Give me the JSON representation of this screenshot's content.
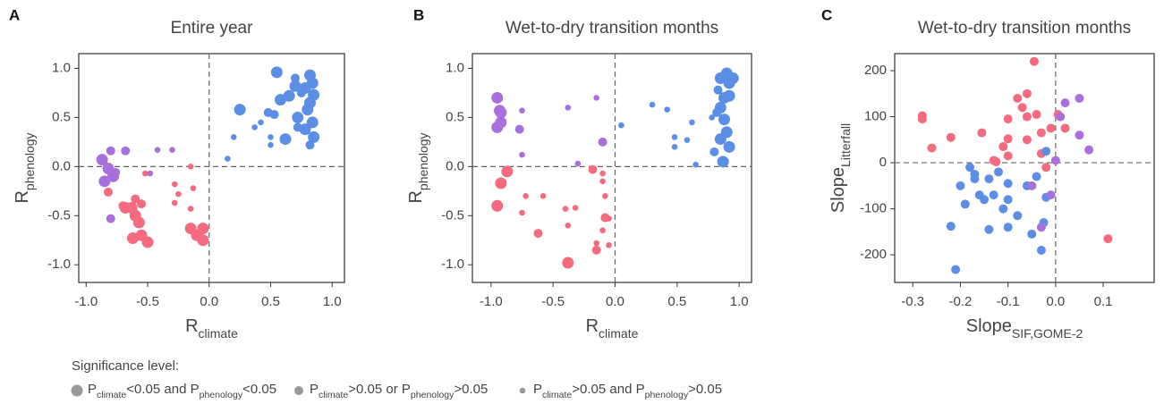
{
  "chart_data": [
    {
      "type": "scatter",
      "panel": "A",
      "title": "Entire year",
      "xlabel": [
        "R",
        "climate"
      ],
      "ylabel": [
        "R",
        "phenology"
      ],
      "xlim": [
        -1.06,
        1.1
      ],
      "ylim": [
        -1.18,
        1.15
      ],
      "xticks": [
        {
          "value": -1,
          "label": "-1.0"
        },
        {
          "value": -0.5,
          "label": "-0.5"
        },
        {
          "value": 0,
          "label": "0.0"
        },
        {
          "value": 0.5,
          "label": "0.5"
        },
        {
          "value": 1,
          "label": "1.0"
        }
      ],
      "yticks": [
        {
          "value": -1,
          "label": "-1.0"
        },
        {
          "value": -0.5,
          "label": "-0.5"
        },
        {
          "value": 0,
          "label": "0.0"
        },
        {
          "value": 0.5,
          "label": "0.5"
        },
        {
          "value": 1,
          "label": "1.0"
        }
      ],
      "reference_lines": {
        "x": 0,
        "y": 0
      },
      "series": [
        {
          "color": "#5b8fe6",
          "marker": "large",
          "x": [
            0.55,
            0.82,
            0.84,
            0.7,
            0.85,
            0.78,
            0.65,
            0.58,
            0.82,
            0.8,
            0.72,
            0.84,
            0.62,
            0.85,
            0.25,
            0.78
          ],
          "values": [
            0.96,
            0.93,
            0.85,
            0.82,
            0.73,
            0.8,
            0.72,
            0.68,
            0.65,
            0.58,
            0.5,
            0.45,
            0.28,
            0.3,
            0.58,
            0.38
          ]
        },
        {
          "color": "#5b8fe6",
          "marker": "medium",
          "x": [
            0.7,
            0.75,
            0.48,
            0.82,
            0.72,
            0.53
          ],
          "values": [
            0.9,
            0.75,
            0.55,
            0.22,
            0.4,
            0.53
          ]
        },
        {
          "color": "#5b8fe6",
          "marker": "small",
          "x": [
            0.42,
            0.2,
            0.15,
            0.37,
            0.5,
            0.5
          ],
          "values": [
            0.45,
            0.3,
            0.08,
            0.4,
            0.3,
            0.22
          ]
        },
        {
          "color": "#a970dd",
          "marker": "large",
          "x": [
            -0.87,
            -0.85,
            -0.82,
            -0.78
          ],
          "values": [
            0.07,
            -0.15,
            -0.02,
            -0.1
          ]
        },
        {
          "color": "#a970dd",
          "marker": "medium",
          "x": [
            -0.8,
            -0.68,
            -0.8,
            -0.76
          ],
          "values": [
            0.16,
            0.16,
            -0.53,
            -0.06
          ]
        },
        {
          "color": "#a970dd",
          "marker": "small",
          "x": [
            -0.42,
            -0.3,
            -0.48
          ],
          "values": [
            0.17,
            0.17,
            -0.07
          ]
        },
        {
          "color": "#f46a7f",
          "marker": "large",
          "x": [
            -0.62,
            -0.55,
            -0.5,
            -0.63,
            -0.68,
            -0.6,
            -0.57,
            -0.1,
            -0.05,
            -0.15,
            -0.05
          ],
          "values": [
            -0.73,
            -0.7,
            -0.77,
            -0.42,
            -0.42,
            -0.5,
            -0.57,
            -0.7,
            -0.63,
            -0.63,
            -0.75
          ]
        },
        {
          "color": "#f46a7f",
          "marker": "medium",
          "x": [
            -0.82,
            -0.6,
            -0.55,
            -0.7
          ],
          "values": [
            -0.26,
            -0.33,
            -0.38,
            -0.4
          ]
        },
        {
          "color": "#f46a7f",
          "marker": "small",
          "x": [
            -0.52,
            -0.28,
            -0.25,
            -0.15,
            -0.13,
            -0.15,
            -0.28
          ],
          "values": [
            -0.07,
            -0.18,
            -0.28,
            0.0,
            -0.22,
            -0.43,
            -0.37
          ]
        }
      ]
    },
    {
      "type": "scatter",
      "panel": "B",
      "title": "Wet-to-dry transition months",
      "xlabel": [
        "R",
        "climate"
      ],
      "ylabel": [
        "R",
        "phenology"
      ],
      "xlim": [
        -1.15,
        1.1
      ],
      "ylim": [
        -1.18,
        1.15
      ],
      "xticks": [
        {
          "value": -1,
          "label": "-1.0"
        },
        {
          "value": -0.5,
          "label": "-0.5"
        },
        {
          "value": 0,
          "label": "0.0"
        },
        {
          "value": 0.5,
          "label": "0.5"
        },
        {
          "value": 1,
          "label": "1.0"
        }
      ],
      "yticks": [
        {
          "value": -1,
          "label": "-1.0"
        },
        {
          "value": -0.5,
          "label": "-0.5"
        },
        {
          "value": 0,
          "label": "0.0"
        },
        {
          "value": 0.5,
          "label": "0.5"
        },
        {
          "value": 1,
          "label": "1.0"
        }
      ],
      "reference_lines": {
        "x": 0,
        "y": 0
      },
      "series": [
        {
          "color": "#5b8fe6",
          "marker": "large",
          "x": [
            0.9,
            0.95,
            0.85,
            0.88,
            0.92,
            0.85,
            0.88,
            0.9,
            0.85,
            0.92,
            0.87,
            0.92
          ],
          "values": [
            0.95,
            0.9,
            0.9,
            0.7,
            0.72,
            0.6,
            0.48,
            0.35,
            0.28,
            0.2,
            0.05,
            0.85
          ]
        },
        {
          "color": "#5b8fe6",
          "marker": "medium",
          "x": [
            0.83,
            0.82,
            0.8
          ],
          "values": [
            0.78,
            0.55,
            0.15
          ]
        },
        {
          "color": "#5b8fe6",
          "marker": "small",
          "x": [
            0.3,
            0.42,
            0.05,
            0.48,
            0.48,
            0.58,
            0.62,
            0.65,
            0.78
          ],
          "values": [
            0.63,
            0.58,
            0.42,
            0.3,
            0.2,
            0.27,
            0.45,
            0.02,
            0.5
          ]
        },
        {
          "color": "#a970dd",
          "marker": "large",
          "x": [
            -0.95,
            -0.93,
            -0.92,
            -0.95,
            -0.92
          ],
          "values": [
            0.7,
            0.57,
            0.45,
            0.4,
            0.55
          ]
        },
        {
          "color": "#a970dd",
          "marker": "medium",
          "x": [
            -0.77,
            -0.1
          ],
          "values": [
            0.38,
            0.25
          ]
        },
        {
          "color": "#a970dd",
          "marker": "small",
          "x": [
            -0.75,
            -0.38,
            -0.15,
            -0.3,
            -0.75
          ],
          "values": [
            0.57,
            0.6,
            0.7,
            0.03,
            0.12
          ]
        },
        {
          "color": "#f46a7f",
          "marker": "large",
          "x": [
            -0.95,
            -0.92,
            -0.38,
            -0.87
          ],
          "values": [
            -0.4,
            -0.17,
            -0.98,
            -0.05
          ]
        },
        {
          "color": "#f46a7f",
          "marker": "medium",
          "x": [
            -0.15,
            -0.18,
            -0.62,
            -0.08
          ],
          "values": [
            -0.85,
            -0.03,
            -0.68,
            -0.52
          ]
        },
        {
          "color": "#f46a7f",
          "marker": "small",
          "x": [
            -0.72,
            -0.75,
            -0.58,
            -0.4,
            -0.38,
            -0.32,
            -0.1,
            -0.1,
            -0.08,
            -0.05,
            -0.1,
            -0.15,
            -0.05
          ],
          "values": [
            -0.3,
            -0.47,
            -0.3,
            -0.43,
            -0.6,
            -0.42,
            -0.07,
            -0.15,
            -0.3,
            -0.53,
            -0.65,
            -0.78,
            -0.8
          ]
        }
      ]
    },
    {
      "type": "scatter",
      "panel": "C",
      "title": "Wet-to-dry transition months",
      "xlabel": [
        "Slope",
        "SIF,GOME-2"
      ],
      "ylabel": [
        "Slope",
        "Litterfall"
      ],
      "xlim": [
        -0.338,
        0.207
      ],
      "ylim": [
        -260,
        237
      ],
      "xticks": [
        -0.3,
        -0.2,
        -0.1,
        {
          "value": 0,
          "label": "0.0"
        },
        0.1
      ],
      "yticks": [
        -200,
        -100,
        0,
        100,
        200
      ],
      "reference_lines": {
        "x": 0,
        "y": 0
      },
      "series": [
        {
          "color": "#f46a7f",
          "marker": "medium",
          "x": [
            -0.28,
            -0.28,
            -0.26,
            -0.22,
            -0.155,
            -0.11,
            -0.1,
            -0.1,
            -0.08,
            -0.07,
            -0.06,
            -0.06,
            -0.06,
            -0.045,
            -0.04,
            -0.03,
            -0.03,
            -0.02,
            -0.01,
            0.02,
            0.005,
            0.11,
            -0.13,
            -0.125,
            -0.1
          ],
          "values": [
            102,
            95,
            32,
            55,
            65,
            35,
            95,
            52,
            140,
            120,
            150,
            100,
            50,
            220,
            105,
            65,
            20,
            -10,
            75,
            75,
            105,
            -165,
            5,
            2,
            15
          ]
        },
        {
          "color": "#5b8fe6",
          "marker": "medium",
          "x": [
            -0.21,
            -0.22,
            -0.2,
            -0.19,
            -0.18,
            -0.17,
            -0.16,
            -0.15,
            -0.14,
            -0.14,
            -0.13,
            -0.12,
            -0.11,
            -0.1,
            -0.1,
            -0.08,
            -0.06,
            -0.05,
            -0.04,
            -0.03,
            -0.025,
            -0.02,
            -0.02,
            -0.1,
            -0.17
          ],
          "values": [
            -232,
            -138,
            -50,
            -90,
            -10,
            -35,
            -70,
            -80,
            -145,
            -35,
            -70,
            -20,
            -100,
            -80,
            -45,
            -115,
            -50,
            -155,
            -30,
            -190,
            -130,
            25,
            -75,
            -140,
            -25
          ]
        },
        {
          "color": "#a970dd",
          "marker": "medium",
          "x": [
            0.02,
            0.05,
            0.05,
            0.07,
            0.01,
            -0.05,
            -0.03,
            -0.01,
            0
          ],
          "values": [
            130,
            140,
            60,
            28,
            100,
            -50,
            -140,
            -70,
            5
          ]
        }
      ]
    }
  ],
  "legend": {
    "title": "Significance level:",
    "items": [
      {
        "marker": "large",
        "text": [
          "P",
          "climate",
          "<0.05 and P",
          "phenology",
          "<0.05"
        ]
      },
      {
        "marker": "medium",
        "text": [
          "P",
          "climate",
          ">0.05 or P",
          "phenology",
          ">0.05"
        ]
      },
      {
        "marker": "small",
        "text": [
          "P",
          "climate",
          ">0.05 and P",
          "phenology",
          ">0.05"
        ]
      }
    ]
  }
}
